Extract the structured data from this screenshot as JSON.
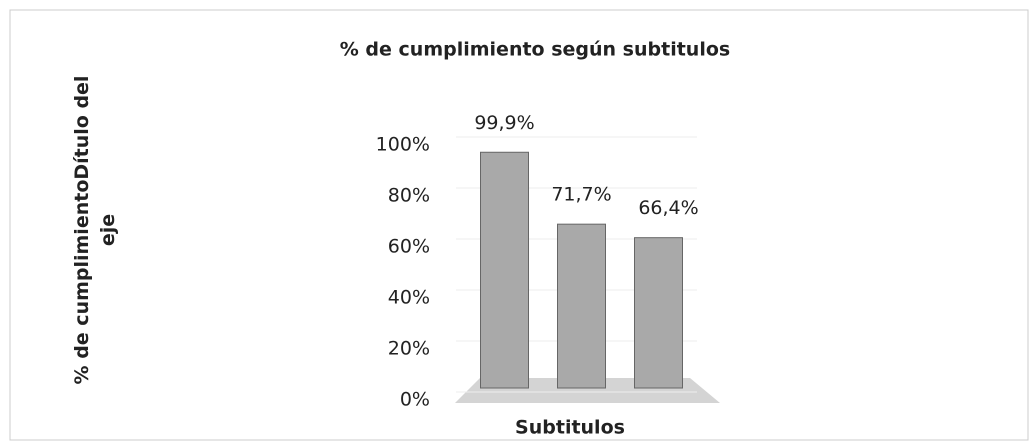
{
  "chart_data": {
    "type": "bar",
    "title": "% de cumplimiento según subtitulos",
    "x_label": "Subtitulos",
    "y_label": "% de cumplimientoDítulo del eje",
    "categories": [
      null,
      null,
      null
    ],
    "values": [
      99.9,
      71.7,
      66.4
    ],
    "value_labels": [
      "99,9%",
      "71,7%",
      "66,4%"
    ],
    "color": "#a9a9a9",
    "ylim": [
      0,
      100
    ],
    "yticks": [
      {
        "value": 0,
        "label": "0%"
      },
      {
        "value": 20,
        "label": "20%"
      },
      {
        "value": 40,
        "label": "40%"
      },
      {
        "value": 60,
        "label": "60%"
      },
      {
        "value": 80,
        "label": "80%"
      },
      {
        "value": 100,
        "label": "100%"
      }
    ],
    "grid": true
  }
}
